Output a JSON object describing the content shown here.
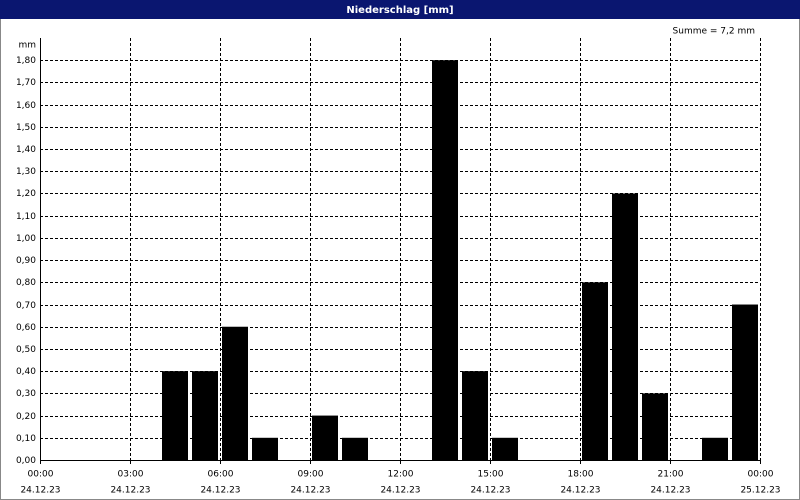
{
  "chart_data": {
    "type": "bar",
    "title": "Niederschlag [mm]",
    "y_unit": "mm",
    "annotation": "Summe = 7,2 mm",
    "x": [
      4,
      5,
      6,
      7,
      9,
      10,
      13,
      14,
      15,
      18,
      19,
      20,
      22,
      23
    ],
    "values": [
      0.4,
      0.4,
      0.6,
      0.1,
      0.2,
      0.1,
      1.8,
      0.4,
      0.1,
      0.8,
      1.2,
      0.3,
      0.1,
      0.7
    ],
    "color": "#000000",
    "xlim": [
      0,
      24
    ],
    "xticks": [
      {
        "value": 0,
        "label": "00:00",
        "date": "24.12.23"
      },
      {
        "value": 3,
        "label": "03:00",
        "date": "24.12.23"
      },
      {
        "value": 6,
        "label": "06:00",
        "date": "24.12.23"
      },
      {
        "value": 9,
        "label": "09:00",
        "date": "24.12.23"
      },
      {
        "value": 12,
        "label": "12:00",
        "date": "24.12.23"
      },
      {
        "value": 15,
        "label": "15:00",
        "date": "24.12.23"
      },
      {
        "value": 18,
        "label": "18:00",
        "date": "24.12.23"
      },
      {
        "value": 21,
        "label": "21:00",
        "date": "24.12.23"
      },
      {
        "value": 24,
        "label": "00:00",
        "date": "25.12.23"
      }
    ],
    "ylim": [
      0,
      1.9
    ],
    "yticks": [
      {
        "value": 0,
        "label": "0,00"
      },
      {
        "value": 0.1,
        "label": "0,10"
      },
      {
        "value": 0.2,
        "label": "0,20"
      },
      {
        "value": 0.3,
        "label": "0,30"
      },
      {
        "value": 0.4,
        "label": "0,40"
      },
      {
        "value": 0.5,
        "label": "0,50"
      },
      {
        "value": 0.6,
        "label": "0,60"
      },
      {
        "value": 0.7,
        "label": "0,70"
      },
      {
        "value": 0.8,
        "label": "0,80"
      },
      {
        "value": 0.9,
        "label": "0,90"
      },
      {
        "value": 1.0,
        "label": "1,00"
      },
      {
        "value": 1.1,
        "label": "1,10"
      },
      {
        "value": 1.2,
        "label": "1,20"
      },
      {
        "value": 1.3,
        "label": "1,30"
      },
      {
        "value": 1.4,
        "label": "1,40"
      },
      {
        "value": 1.5,
        "label": "1,50"
      },
      {
        "value": 1.6,
        "label": "1,60"
      },
      {
        "value": 1.7,
        "label": "1,70"
      },
      {
        "value": 1.8,
        "label": "1,80"
      }
    ],
    "grid": true
  }
}
